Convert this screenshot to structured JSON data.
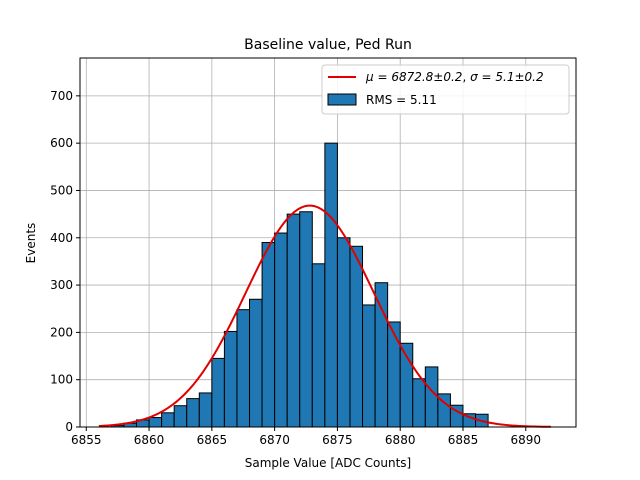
{
  "chart_data": {
    "type": "bar",
    "title": "Baseline value, Ped Run",
    "xlabel": "Sample Value [ADC Counts]",
    "ylabel": "Events",
    "xlim": [
      6854.5,
      6894.0
    ],
    "ylim": [
      0,
      780
    ],
    "xticks": [
      6855,
      6860,
      6865,
      6870,
      6875,
      6880,
      6885,
      6890
    ],
    "yticks": [
      0,
      100,
      200,
      300,
      400,
      500,
      600,
      700
    ],
    "grid": true,
    "legend_position": "top-right",
    "bin_width": 1,
    "histogram": {
      "name": "RMS = 5.11",
      "color": "#1f77b4",
      "edgecolor": "#000000",
      "bin_left_edges": [
        6857,
        6858,
        6859,
        6860,
        6861,
        6862,
        6863,
        6864,
        6865,
        6866,
        6867,
        6868,
        6869,
        6870,
        6871,
        6872,
        6873,
        6874,
        6875,
        6876,
        6877,
        6878,
        6879,
        6880,
        6881,
        6882,
        6883,
        6884,
        6885,
        6886
      ],
      "values": [
        3,
        8,
        15,
        20,
        30,
        45,
        60,
        72,
        145,
        202,
        248,
        270,
        390,
        410,
        450,
        455,
        345,
        600,
        400,
        382,
        258,
        305,
        222,
        177,
        102,
        127,
        70,
        46,
        28,
        27
      ]
    },
    "fit": {
      "type": "gaussian",
      "name": "$\\mu = 6872.8 \\pm 0.2$, $\\sigma = 5.1 \\pm 0.2$",
      "legend_mu": "μ = 6872.8±0.2",
      "legend_sigma": "σ = 5.1±0.2",
      "color": "#e00000",
      "mu": 6872.8,
      "sigma": 5.1,
      "amplitude": 468,
      "x_range": [
        6856,
        6892
      ]
    }
  }
}
